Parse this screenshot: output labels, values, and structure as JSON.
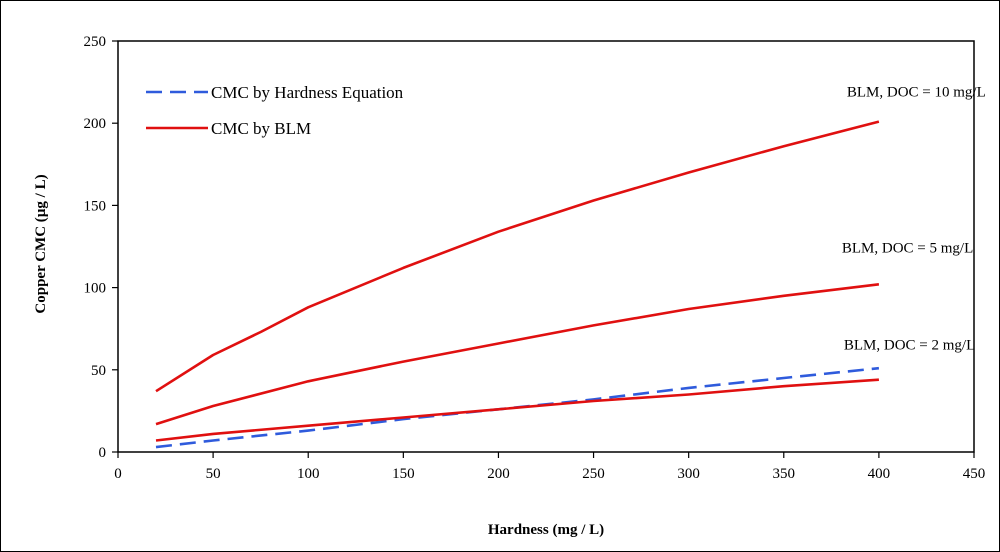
{
  "chart_data": {
    "type": "line",
    "title": "",
    "xlabel": "Hardness (mg / L)",
    "ylabel": "Copper CMC (µg / L)",
    "xlim": [
      0,
      450
    ],
    "ylim": [
      0,
      250
    ],
    "x_ticks": [
      0,
      50,
      100,
      150,
      200,
      250,
      300,
      350,
      400,
      450
    ],
    "y_ticks": [
      0,
      50,
      100,
      150,
      200,
      250
    ],
    "grid": false,
    "legend_position": "top-left",
    "legend": [
      {
        "label": "CMC by Hardness Equation",
        "style": "dashed",
        "color": "#2f5bdc"
      },
      {
        "label": "CMC by BLM",
        "style": "solid",
        "color": "#e01010"
      }
    ],
    "series": [
      {
        "name": "CMC by Hardness Equation",
        "style": "dashed",
        "color": "#2f5bdc",
        "x": [
          20,
          50,
          100,
          150,
          200,
          250,
          300,
          350,
          400
        ],
        "y": [
          3,
          7,
          13,
          20,
          26,
          32,
          39,
          45,
          51
        ]
      },
      {
        "name": "CMC by BLM",
        "annotation": "BLM, DOC = 10 mg/L",
        "style": "solid",
        "color": "#e01010",
        "x": [
          20,
          50,
          75,
          100,
          150,
          200,
          250,
          300,
          350,
          400
        ],
        "y": [
          37,
          59,
          73,
          88,
          112,
          134,
          153,
          170,
          186,
          201
        ]
      },
      {
        "name": "CMC by BLM",
        "annotation": "BLM, DOC = 5 mg/L",
        "style": "solid",
        "color": "#e01010",
        "x": [
          20,
          50,
          100,
          150,
          200,
          250,
          300,
          350,
          400
        ],
        "y": [
          17,
          28,
          43,
          55,
          66,
          77,
          87,
          95,
          102
        ]
      },
      {
        "name": "CMC by BLM",
        "annotation": "BLM, DOC = 2 mg/L",
        "style": "solid",
        "color": "#e01010",
        "x": [
          20,
          50,
          100,
          150,
          200,
          250,
          300,
          350,
          400
        ],
        "y": [
          7,
          11,
          16,
          21,
          26,
          31,
          35,
          40,
          44
        ]
      }
    ]
  },
  "annotations": [
    {
      "text": "BLM, DOC = 10 mg/L",
      "x": 400,
      "y": 201
    },
    {
      "text": "BLM, DOC = 5 mg/L",
      "x": 400,
      "y": 102
    },
    {
      "text": "BLM, DOC = 2 mg/L",
      "x": 400,
      "y": 44
    }
  ]
}
